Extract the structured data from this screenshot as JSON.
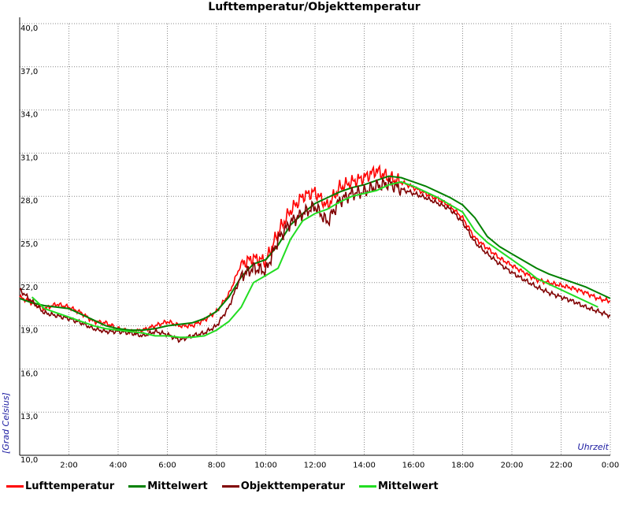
{
  "chart_data": {
    "type": "line",
    "title": "Lufttemperatur/Objekttemperatur",
    "xlabel": "Uhrzeit",
    "ylabel": "[Grad Celsius]",
    "ylim": [
      10,
      40
    ],
    "xlim": [
      0,
      24
    ],
    "grid": true,
    "legend_position": "bottom",
    "y_ticks": [
      "10,0",
      "13,0",
      "16,0",
      "19,0",
      "22,0",
      "25,0",
      "28,0",
      "31,0",
      "34,0",
      "37,0",
      "40,0"
    ],
    "x_ticks": [
      "2:00",
      "4:00",
      "6:00",
      "8:00",
      "10:00",
      "12:00",
      "14:00",
      "16:00",
      "18:00",
      "20:00",
      "22:00",
      "0:00"
    ],
    "x_unit": "hours",
    "series": [
      {
        "name": "Lufttemperatur",
        "color": "#ff0000",
        "x": [
          0,
          0.5,
          1,
          1.5,
          2,
          2.5,
          3,
          3.5,
          4,
          4.5,
          5,
          5.5,
          6,
          6.5,
          7,
          7.5,
          8,
          8.5,
          9,
          9.5,
          10,
          10.5,
          11,
          11.5,
          12,
          12.5,
          13,
          13.5,
          14,
          14.5,
          15,
          15.5,
          16,
          16.5,
          17,
          17.5,
          18,
          18.5,
          19,
          19.5,
          20,
          20.5,
          21,
          21.5,
          22,
          22.5,
          23,
          23.5,
          24
        ],
        "values": [
          21.0,
          20.6,
          20.2,
          20.5,
          20.3,
          19.9,
          19.3,
          19.2,
          18.8,
          18.6,
          18.7,
          19.0,
          19.3,
          19.0,
          19.0,
          19.4,
          20.0,
          21.2,
          23.3,
          23.7,
          23.5,
          25.5,
          27.0,
          28.0,
          28.3,
          27.3,
          28.6,
          29.0,
          29.3,
          29.8,
          29.3,
          29.0,
          28.6,
          28.2,
          27.8,
          27.3,
          26.5,
          25.1,
          24.4,
          23.7,
          23.2,
          22.7,
          22.2,
          22.0,
          21.8,
          21.6,
          21.3,
          20.9,
          20.7
        ]
      },
      {
        "name": "Mittelwert",
        "color": "#008000",
        "x": [
          0,
          0.5,
          1,
          1.5,
          2,
          2.5,
          3,
          3.5,
          4,
          4.5,
          5,
          5.5,
          6,
          6.5,
          7,
          7.5,
          8,
          8.5,
          9,
          9.5,
          10,
          10.5,
          11,
          11.5,
          12,
          12.5,
          13,
          13.5,
          14,
          14.5,
          15,
          15.5,
          16,
          16.5,
          17,
          17.5,
          18,
          18.5,
          19,
          19.5,
          20,
          20.5,
          21,
          21.5,
          22,
          22.5,
          23,
          23.5,
          24
        ],
        "values": [
          20.9,
          20.6,
          20.4,
          20.3,
          20.2,
          19.8,
          19.4,
          19.0,
          18.8,
          18.7,
          18.7,
          18.8,
          19.0,
          19.1,
          19.2,
          19.5,
          20.0,
          21.0,
          22.4,
          23.3,
          23.6,
          24.6,
          26.0,
          26.8,
          27.5,
          27.9,
          28.3,
          28.6,
          28.8,
          29.1,
          29.4,
          29.3,
          29.0,
          28.7,
          28.3,
          27.9,
          27.4,
          26.5,
          25.2,
          24.5,
          24.0,
          23.5,
          23.0,
          22.6,
          22.3,
          22.0,
          21.7,
          21.3,
          20.9
        ]
      },
      {
        "name": "Objekttemperatur",
        "color": "#800000",
        "x": [
          0,
          0.5,
          1,
          1.5,
          2,
          2.5,
          3,
          3.5,
          4,
          4.5,
          5,
          5.5,
          6,
          6.5,
          7,
          7.5,
          8,
          8.5,
          9,
          9.5,
          10,
          10.5,
          11,
          11.5,
          12,
          12.5,
          13,
          13.5,
          14,
          14.5,
          15,
          15.5,
          16,
          16.5,
          17,
          17.5,
          18,
          18.5,
          19,
          19.5,
          20,
          20.5,
          21,
          21.5,
          22,
          22.5,
          23,
          23.5,
          24
        ],
        "values": [
          21.5,
          20.7,
          19.9,
          19.7,
          19.5,
          19.2,
          18.8,
          18.6,
          18.6,
          18.5,
          18.3,
          18.6,
          18.4,
          18.0,
          18.3,
          18.5,
          19.0,
          20.3,
          22.5,
          23.0,
          22.8,
          25.0,
          26.2,
          26.8,
          27.3,
          26.2,
          27.7,
          28.2,
          28.3,
          28.7,
          28.9,
          28.5,
          28.2,
          27.9,
          27.5,
          27.1,
          26.2,
          24.8,
          24.0,
          23.3,
          22.7,
          22.2,
          21.7,
          21.3,
          21.0,
          20.7,
          20.3,
          20.0,
          19.7
        ]
      },
      {
        "name": "Mittelwert",
        "color": "#22dd22",
        "x": [
          0.5,
          1,
          1.5,
          2,
          2.5,
          3,
          3.5,
          4,
          4.5,
          5,
          5.5,
          6,
          6.5,
          7,
          7.5,
          8,
          8.5,
          9,
          9.5,
          10,
          10.5,
          11,
          11.5,
          12,
          12.5,
          13,
          13.5,
          14,
          14.5,
          15,
          15.5,
          16,
          16.5,
          17,
          17.5,
          18,
          18.5,
          19,
          19.5,
          20,
          20.5,
          21,
          21.5,
          22,
          22.5,
          23,
          23.5
        ],
        "values": [
          21.0,
          20.2,
          19.9,
          19.6,
          19.3,
          19.0,
          18.8,
          18.7,
          18.6,
          18.5,
          18.3,
          18.3,
          18.2,
          18.2,
          18.3,
          18.7,
          19.3,
          20.3,
          22.0,
          22.5,
          23.0,
          25.0,
          26.3,
          26.8,
          27.1,
          27.6,
          28.0,
          28.2,
          28.4,
          28.8,
          29.0,
          28.7,
          28.3,
          27.9,
          27.4,
          26.9,
          25.6,
          24.8,
          24.2,
          23.6,
          23.0,
          22.3,
          21.9,
          21.5,
          21.1,
          20.7,
          20.3
        ]
      }
    ]
  },
  "legend": [
    {
      "label": "Lufttemperatur",
      "color": "#ff0000"
    },
    {
      "label": "Mittelwert",
      "color": "#008000"
    },
    {
      "label": "Objekttemperatur",
      "color": "#800000"
    },
    {
      "label": "Mittelwert",
      "color": "#22dd22"
    }
  ]
}
